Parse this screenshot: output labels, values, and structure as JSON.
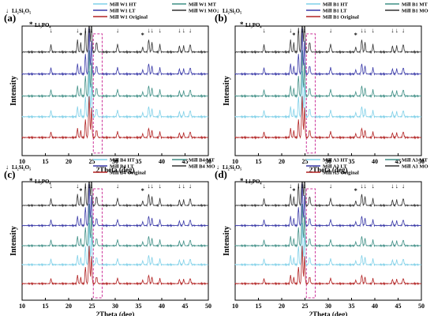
{
  "colors": {
    "HT": "#7fd0e8",
    "MT": "#3f8f86",
    "LT": "#3a3aa8",
    "MO": "#333333",
    "Original": "#b22222",
    "box": "#cc3399"
  },
  "marker_legend": {
    "arrow_symbol": "↓",
    "star_symbol": "*",
    "arrow_label": "Li₂Si₂O₅",
    "star_label": "Li₃PO₄"
  },
  "chart_data": [
    {
      "type": "line",
      "panel_label": "(a)",
      "xlabel": "2Theta (deg)",
      "ylabel": "Intensity",
      "xlim": [
        10,
        50
      ],
      "xticks": [
        10,
        15,
        20,
        25,
        30,
        35,
        40,
        45,
        50
      ],
      "series": [
        {
          "name": "Mill W1 HT",
          "key": "HT"
        },
        {
          "name": "Mill W1 MT",
          "key": "MT"
        },
        {
          "name": "Mill W1 LT",
          "key": "LT"
        },
        {
          "name": "Mill W1 MO",
          "key": "MO"
        },
        {
          "name": "Mill W1 Original",
          "key": "Original"
        }
      ],
      "arrow_peaks": [
        16.2,
        21.9,
        23.6,
        24.4,
        24.9,
        30.5,
        37.2,
        37.9,
        39.6,
        43.8,
        44.7,
        46.1
      ],
      "star_peaks": [
        22.6,
        35.9
      ],
      "box_range": [
        25.3,
        27.2
      ]
    },
    {
      "type": "line",
      "panel_label": "(b)",
      "xlabel": "2Theta (deg)",
      "ylabel": "Intensity",
      "xlim": [
        10,
        50
      ],
      "xticks": [
        10,
        15,
        20,
        25,
        30,
        35,
        40,
        45,
        50
      ],
      "series": [
        {
          "name": "Mill B1 HT",
          "key": "HT"
        },
        {
          "name": "Mill B1 MT",
          "key": "MT"
        },
        {
          "name": "Mill B1 LT",
          "key": "LT"
        },
        {
          "name": "Mill B1 MO",
          "key": "MO"
        },
        {
          "name": "Mill B1 Original",
          "key": "Original"
        }
      ],
      "arrow_peaks": [
        16.2,
        21.9,
        23.6,
        24.4,
        24.9,
        30.5,
        37.2,
        37.9,
        39.6,
        43.8,
        44.7,
        46.1
      ],
      "star_peaks": [
        22.6,
        35.9
      ],
      "box_range": [
        25.3,
        27.2
      ]
    },
    {
      "type": "line",
      "panel_label": "(c)",
      "xlabel": "2Theta (deg)",
      "ylabel": "Intensity",
      "xlim": [
        10,
        50
      ],
      "xticks": [
        10,
        15,
        20,
        25,
        30,
        35,
        40,
        45,
        50
      ],
      "series": [
        {
          "name": "Mill B4 HT",
          "key": "HT"
        },
        {
          "name": "Mill B4 MT",
          "key": "MT"
        },
        {
          "name": "Mill B4 LT",
          "key": "LT"
        },
        {
          "name": "Mill B4 MO",
          "key": "MO"
        },
        {
          "name": "Mill B4 Original",
          "key": "Original"
        }
      ],
      "arrow_peaks": [
        16.2,
        21.9,
        23.6,
        24.4,
        24.9,
        30.5,
        37.2,
        37.9,
        39.6,
        43.8,
        44.7,
        46.1
      ],
      "star_peaks": [
        22.6,
        35.9
      ],
      "box_range": [
        25.3,
        27.2
      ]
    },
    {
      "type": "line",
      "panel_label": "(d)",
      "xlabel": "2Theta (deg)",
      "ylabel": "Intensity",
      "xlim": [
        10,
        50
      ],
      "xticks": [
        10,
        15,
        20,
        25,
        30,
        35,
        40,
        45,
        50
      ],
      "series": [
        {
          "name": "Mill A3 HT",
          "key": "HT"
        },
        {
          "name": "Mill A3 MT",
          "key": "MT"
        },
        {
          "name": "Mill A3 LT",
          "key": "LT"
        },
        {
          "name": "Mill A3 MO",
          "key": "MO"
        },
        {
          "name": "Mill A3 Original",
          "key": "Original"
        }
      ],
      "arrow_peaks": [
        16.2,
        21.9,
        23.6,
        24.4,
        24.9,
        30.5,
        37.2,
        37.9,
        39.6,
        43.8,
        44.7,
        46.1
      ],
      "star_peaks": [
        22.6,
        35.9
      ],
      "box_range": [
        25.3,
        27.2
      ]
    }
  ]
}
